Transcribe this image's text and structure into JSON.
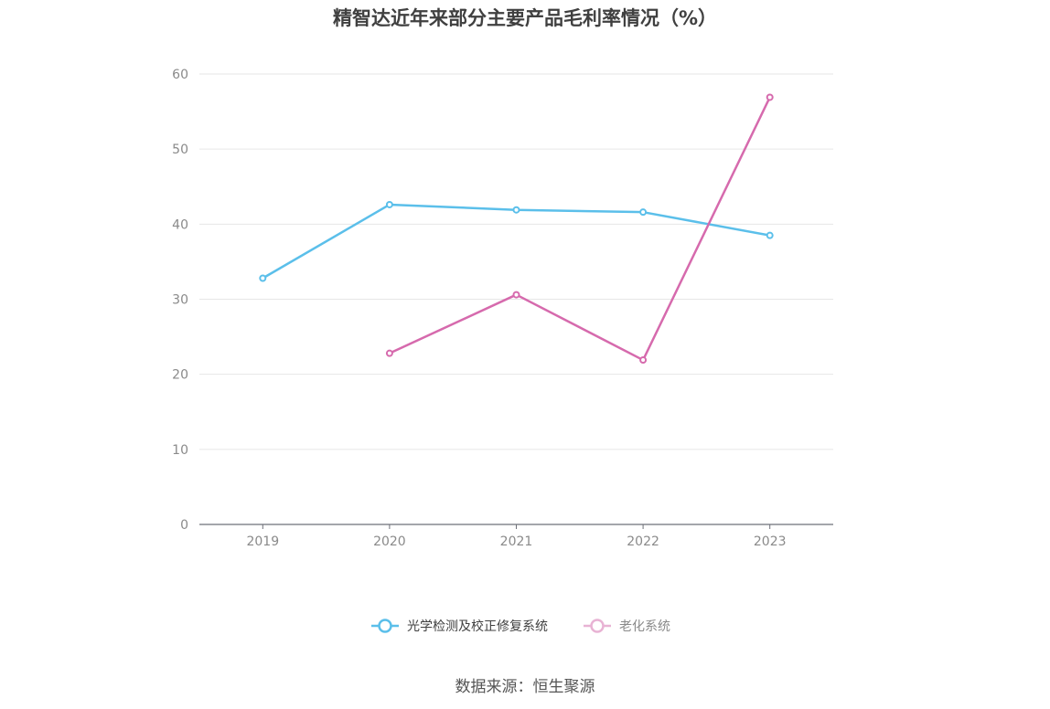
{
  "title": "精智达近年来部分主要产品毛利率情况（%）",
  "source": "数据来源：恒生聚源",
  "chart_data": {
    "type": "line",
    "title": "精智达近年来部分主要产品毛利率情况（%）",
    "xlabel": "",
    "ylabel": "",
    "categories": [
      "2019",
      "2020",
      "2021",
      "2022",
      "2023"
    ],
    "ylim": [
      0,
      60
    ],
    "yticks": [
      0,
      10,
      20,
      30,
      40,
      50,
      60
    ],
    "grid": true,
    "legend_position": "bottom-center",
    "series": [
      {
        "name": "光学检测及校正修复系统",
        "color": "#5bbfea",
        "values": [
          32.8,
          42.6,
          41.9,
          41.6,
          38.5
        ]
      },
      {
        "name": "老化系统",
        "color": "#d66aad",
        "values": [
          null,
          22.8,
          30.6,
          21.9,
          56.9
        ]
      }
    ]
  }
}
